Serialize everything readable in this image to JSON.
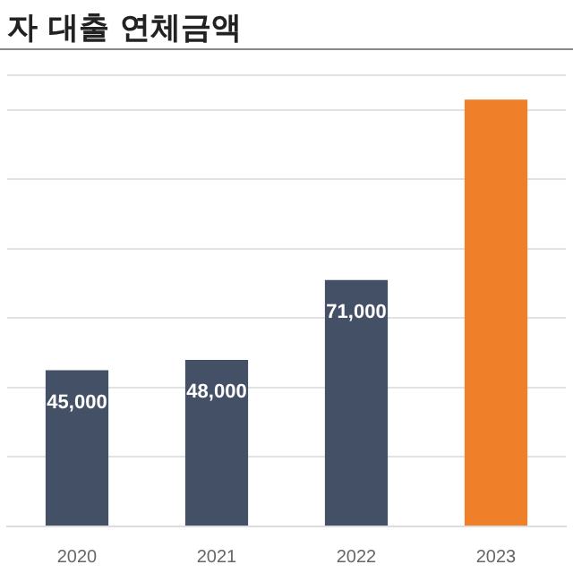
{
  "chart_data": {
    "type": "bar",
    "title": "자 대출 연체금액",
    "categories": [
      "2020",
      "2021",
      "2022",
      "2023"
    ],
    "values": [
      45000,
      48000,
      71000,
      123000
    ],
    "colors": [
      "#435066",
      "#435066",
      "#435066",
      "#f07f2a"
    ],
    "value_labels": [
      "45,000",
      "48,000",
      "71,000",
      null
    ],
    "ylim": [
      0,
      130000
    ],
    "grid": "y",
    "tick_labels": "x",
    "legend": false
  }
}
